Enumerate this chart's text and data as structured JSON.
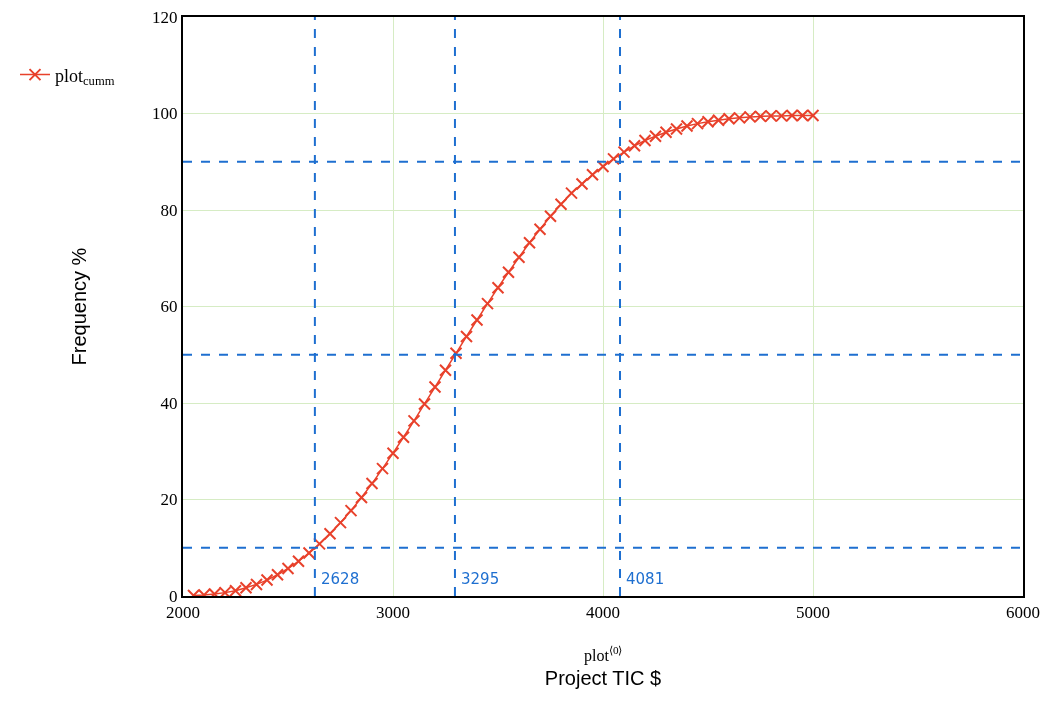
{
  "chart_data": {
    "type": "line",
    "x": [
      2050,
      2100,
      2150,
      2200,
      2250,
      2300,
      2350,
      2400,
      2450,
      2500,
      2550,
      2600,
      2650,
      2700,
      2750,
      2800,
      2850,
      2900,
      2950,
      3000,
      3050,
      3100,
      3150,
      3200,
      3250,
      3300,
      3350,
      3400,
      3450,
      3500,
      3550,
      3600,
      3650,
      3700,
      3750,
      3800,
      3850,
      3900,
      3950,
      4000,
      4050,
      4100,
      4150,
      4200,
      4250,
      4300,
      4350,
      4400,
      4450,
      4500,
      4550,
      4600,
      4650,
      4700,
      4750,
      4800,
      4850,
      4900,
      4950,
      5000
    ],
    "series": [
      {
        "name": "plot$_{cumm}$",
        "color": "#e8412b",
        "values": [
          0.1,
          0.2,
          0.4,
          0.7,
          1.1,
          1.7,
          2.4,
          3.3,
          4.4,
          5.7,
          7.2,
          8.9,
          10.8,
          12.9,
          15.2,
          17.7,
          20.4,
          23.3,
          26.4,
          29.6,
          32.9,
          36.3,
          39.8,
          43.3,
          46.8,
          50.3,
          53.8,
          57.2,
          60.6,
          63.9,
          67.1,
          70.2,
          73.2,
          76.0,
          78.7,
          81.2,
          83.5,
          85.4,
          87.3,
          89.0,
          90.6,
          92.0,
          93.3,
          94.4,
          95.3,
          96.1,
          96.8,
          97.4,
          97.9,
          98.3,
          98.6,
          98.9,
          99.1,
          99.3,
          99.4,
          99.5,
          99.5,
          99.6,
          99.6,
          99.6
        ]
      }
    ],
    "ylabel": "Frequency %",
    "xlabel": "Project TIC $",
    "annotations": [
      "plot$^{⟨0⟩}$"
    ],
    "xlim": [
      2000,
      6000
    ],
    "xticks": [
      2000,
      3000,
      4000,
      5000,
      6000
    ],
    "ylim": [
      0,
      120
    ],
    "yticks": [
      0,
      20,
      40,
      60,
      80,
      100,
      120
    ],
    "ref_lines": [
      {
        "axis": "y",
        "value": 10,
        "color": "#1e6fd0",
        "line_style": "dashed"
      },
      {
        "axis": "y",
        "value": 50,
        "color": "#1e6fd0",
        "line_style": "dashed"
      },
      {
        "axis": "y",
        "value": 90,
        "color": "#1e6fd0",
        "line_style": "dashed"
      },
      {
        "axis": "x",
        "value": 2628,
        "label": "2628",
        "color": "#1e6fd0",
        "line_style": "dashed"
      },
      {
        "axis": "x",
        "value": 3295,
        "label": "3295",
        "color": "#1e6fd0",
        "line_style": "dashed"
      },
      {
        "axis": "x",
        "value": 4081,
        "label": "4081",
        "color": "#1e6fd0",
        "line_style": "dashed"
      }
    ],
    "grid": true,
    "legend": "left",
    "marker": "cross",
    "line_style": "solid"
  }
}
